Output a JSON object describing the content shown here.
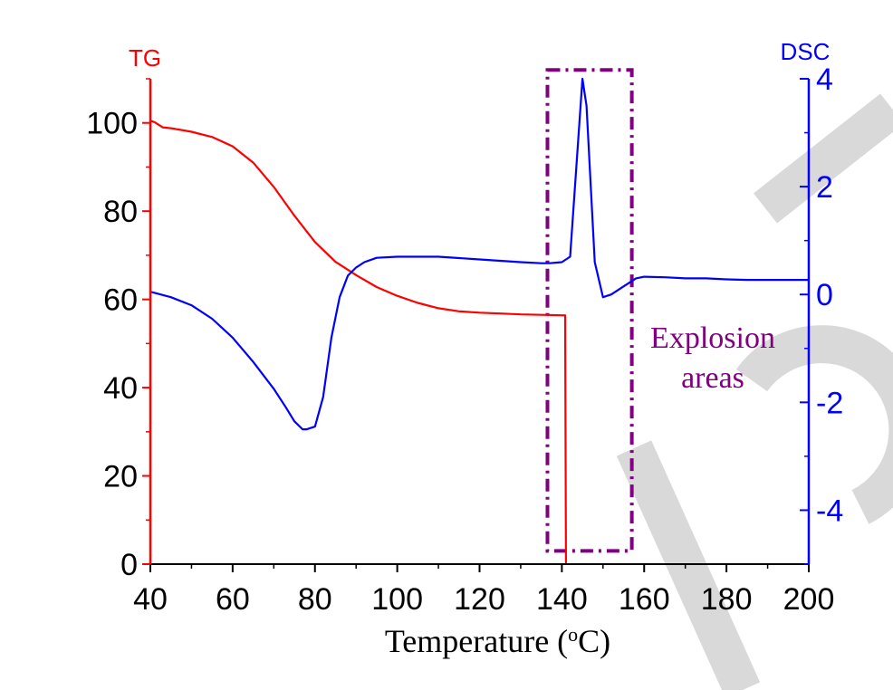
{
  "chart_data": {
    "type": "line",
    "xlabel": {
      "prefix": "Temperature (",
      "superscript": "o",
      "suffix": "C)"
    },
    "x_ticks": [
      40,
      60,
      80,
      100,
      120,
      140,
      160,
      180,
      200
    ],
    "xlim": [
      40,
      200
    ],
    "axes": {
      "left": {
        "title": "TG",
        "color": "#ff0000",
        "ylim": [
          0,
          110
        ],
        "ticks": [
          0,
          20,
          40,
          60,
          80,
          100
        ]
      },
      "right": {
        "title": "DSC",
        "color": "#0000ff",
        "ylim": [
          -5,
          4
        ],
        "ticks": [
          -4,
          -2,
          0,
          2,
          4
        ]
      }
    },
    "series": [
      {
        "axis": "left",
        "color": "#ff0000",
        "x": [
          40,
          41,
          43,
          45,
          50,
          55,
          60,
          65,
          70,
          75,
          80,
          85,
          90,
          95,
          100,
          105,
          110,
          115,
          120,
          125,
          130,
          135,
          140,
          140.8,
          141
        ],
        "y": [
          100.5,
          100.2,
          99,
          98.8,
          98,
          96.8,
          94.7,
          91,
          85.5,
          79,
          73,
          68.5,
          65.5,
          62.8,
          60.8,
          59.2,
          58,
          57.3,
          57,
          56.8,
          56.6,
          56.5,
          56.4,
          56.4,
          0
        ]
      },
      {
        "axis": "right",
        "color": "#0000ff",
        "x": [
          40,
          45,
          50,
          55,
          60,
          65,
          70,
          73,
          75,
          77,
          78,
          80,
          82,
          84,
          86,
          88,
          90,
          92,
          95,
          100,
          110,
          120,
          130,
          135,
          137,
          140,
          142,
          145,
          146,
          148,
          150,
          152,
          155,
          158,
          160,
          165,
          170,
          175,
          180,
          185,
          190,
          195,
          200
        ],
        "y": [
          0.05,
          -0.05,
          -0.2,
          -0.45,
          -0.8,
          -1.25,
          -1.75,
          -2.1,
          -2.35,
          -2.5,
          -2.5,
          -2.45,
          -1.9,
          -0.8,
          -0.05,
          0.35,
          0.5,
          0.6,
          0.68,
          0.7,
          0.7,
          0.65,
          0.6,
          0.58,
          0.58,
          0.6,
          0.7,
          4,
          3.5,
          0.6,
          -0.05,
          0,
          0.15,
          0.3,
          0.33,
          0.32,
          0.3,
          0.3,
          0.28,
          0.27,
          0.27,
          0.27,
          0.27
        ]
      }
    ],
    "annotation": {
      "lines": [
        "Explosion",
        "areas"
      ],
      "color": "#800080",
      "box_x": [
        136.5,
        157
      ],
      "box_y_tg": [
        3,
        112
      ]
    }
  }
}
